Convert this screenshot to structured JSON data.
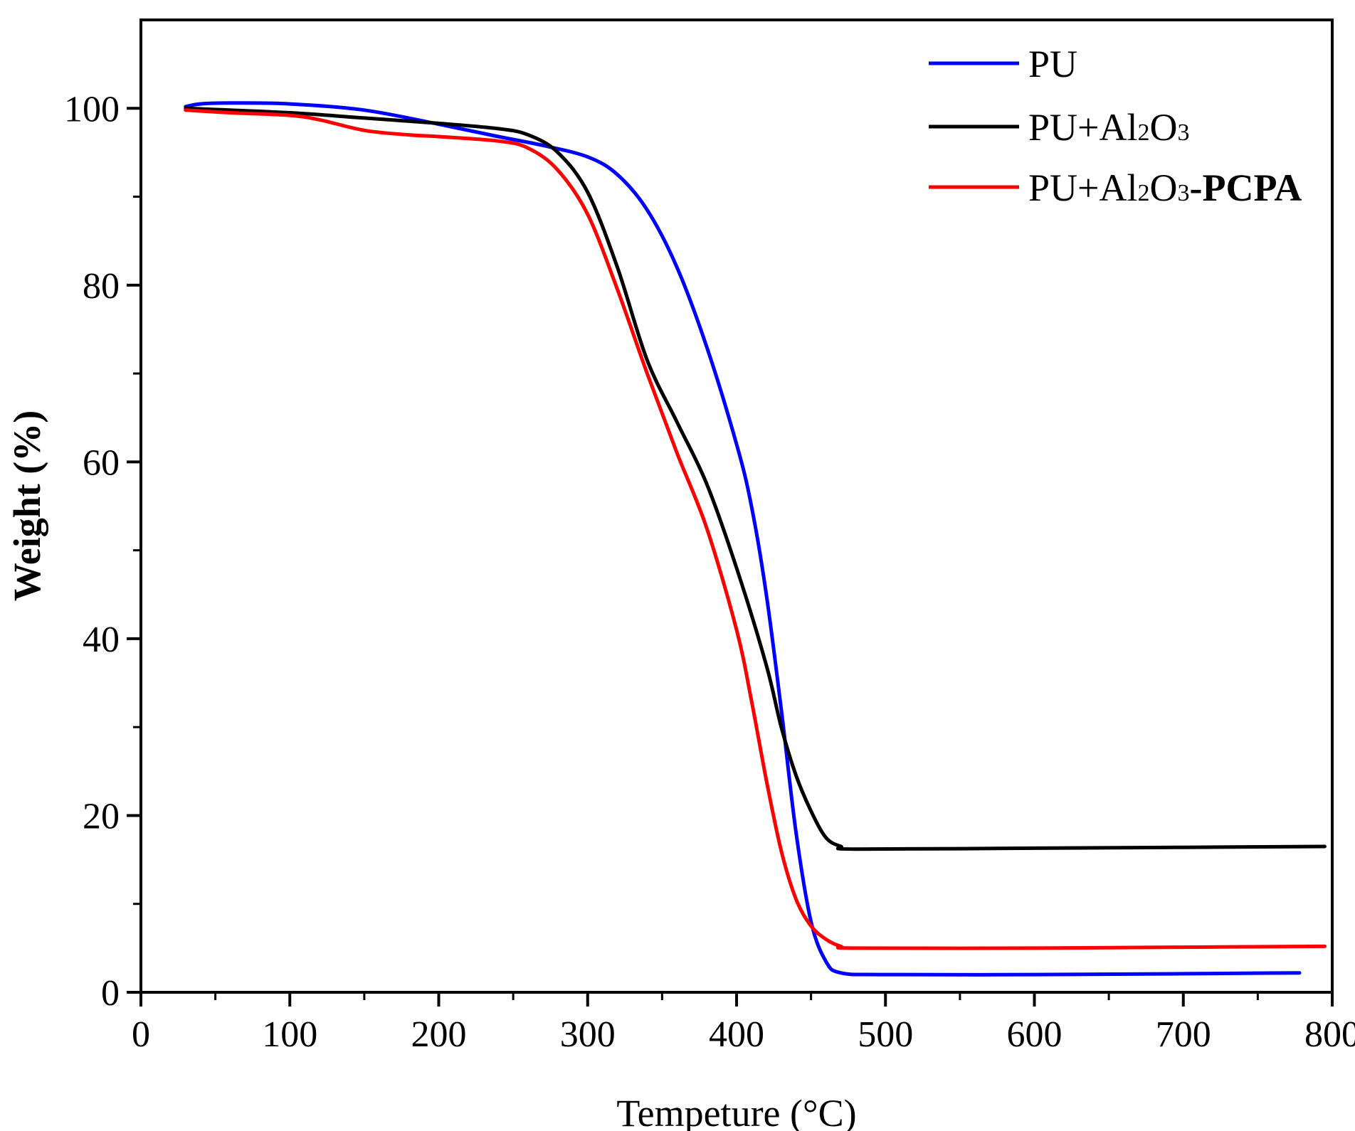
{
  "chart_data": {
    "type": "line",
    "title": "",
    "xlabel": "Tempeture (°C)",
    "ylabel": "Weight (%)",
    "xlim": [
      0,
      800
    ],
    "ylim": [
      0,
      110
    ],
    "x_ticks": [
      0,
      100,
      200,
      300,
      400,
      500,
      600,
      700,
      800
    ],
    "y_ticks": [
      0,
      20,
      40,
      60,
      80,
      100
    ],
    "grid": false,
    "legend_position": "top-right",
    "legend": {
      "pu": {
        "text": "PU"
      },
      "pu_al2o3": {
        "prefix": "PU+Al",
        "sub1": "2",
        "mid": "O",
        "sub2": "3"
      },
      "pu_al2o3_pcpa": {
        "prefix": "PU+Al",
        "sub1": "2",
        "mid": "O",
        "sub2": "3",
        "suffix": "-PCPA"
      }
    },
    "series": [
      {
        "key": "pu",
        "color": "#0000ff",
        "points": [
          [
            30,
            100.2
          ],
          [
            40,
            100.5
          ],
          [
            60,
            100.6
          ],
          [
            100,
            100.5
          ],
          [
            150,
            99.8
          ],
          [
            200,
            98.2
          ],
          [
            240,
            96.8
          ],
          [
            270,
            95.8
          ],
          [
            300,
            94.5
          ],
          [
            320,
            92.5
          ],
          [
            340,
            88.5
          ],
          [
            360,
            82
          ],
          [
            380,
            73
          ],
          [
            400,
            62
          ],
          [
            410,
            55
          ],
          [
            420,
            45
          ],
          [
            430,
            32
          ],
          [
            440,
            18
          ],
          [
            450,
            8
          ],
          [
            460,
            3.5
          ],
          [
            470,
            2.2
          ],
          [
            500,
            2.0
          ],
          [
            600,
            2.0
          ],
          [
            700,
            2.1
          ],
          [
            778,
            2.2
          ]
        ]
      },
      {
        "key": "pu_al2o3",
        "color": "#000000",
        "points": [
          [
            30,
            100
          ],
          [
            100,
            99.5
          ],
          [
            150,
            98.9
          ],
          [
            200,
            98.3
          ],
          [
            240,
            97.7
          ],
          [
            260,
            97.0
          ],
          [
            280,
            95.0
          ],
          [
            300,
            90.5
          ],
          [
            320,
            82
          ],
          [
            340,
            71.5
          ],
          [
            360,
            64.5
          ],
          [
            380,
            57.5
          ],
          [
            400,
            48
          ],
          [
            420,
            37
          ],
          [
            430,
            30
          ],
          [
            440,
            24.5
          ],
          [
            450,
            20.5
          ],
          [
            460,
            17.5
          ],
          [
            470,
            16.5
          ],
          [
            480,
            16.2
          ],
          [
            600,
            16.3
          ],
          [
            700,
            16.4
          ],
          [
            795,
            16.5
          ]
        ]
      },
      {
        "key": "pu_al2o3_pcpa",
        "color": "#ff0000",
        "points": [
          [
            30,
            99.8
          ],
          [
            60,
            99.5
          ],
          [
            100,
            99.2
          ],
          [
            120,
            98.7
          ],
          [
            150,
            97.5
          ],
          [
            180,
            97.0
          ],
          [
            200,
            96.8
          ],
          [
            240,
            96.3
          ],
          [
            260,
            95.5
          ],
          [
            280,
            93
          ],
          [
            300,
            88
          ],
          [
            320,
            79.5
          ],
          [
            340,
            70
          ],
          [
            360,
            61
          ],
          [
            380,
            52.5
          ],
          [
            400,
            41
          ],
          [
            410,
            33
          ],
          [
            420,
            24
          ],
          [
            430,
            16
          ],
          [
            440,
            10.5
          ],
          [
            450,
            7.5
          ],
          [
            460,
            6.0
          ],
          [
            470,
            5.2
          ],
          [
            480,
            5.0
          ],
          [
            600,
            5.0
          ],
          [
            700,
            5.1
          ],
          [
            795,
            5.2
          ]
        ]
      }
    ]
  }
}
